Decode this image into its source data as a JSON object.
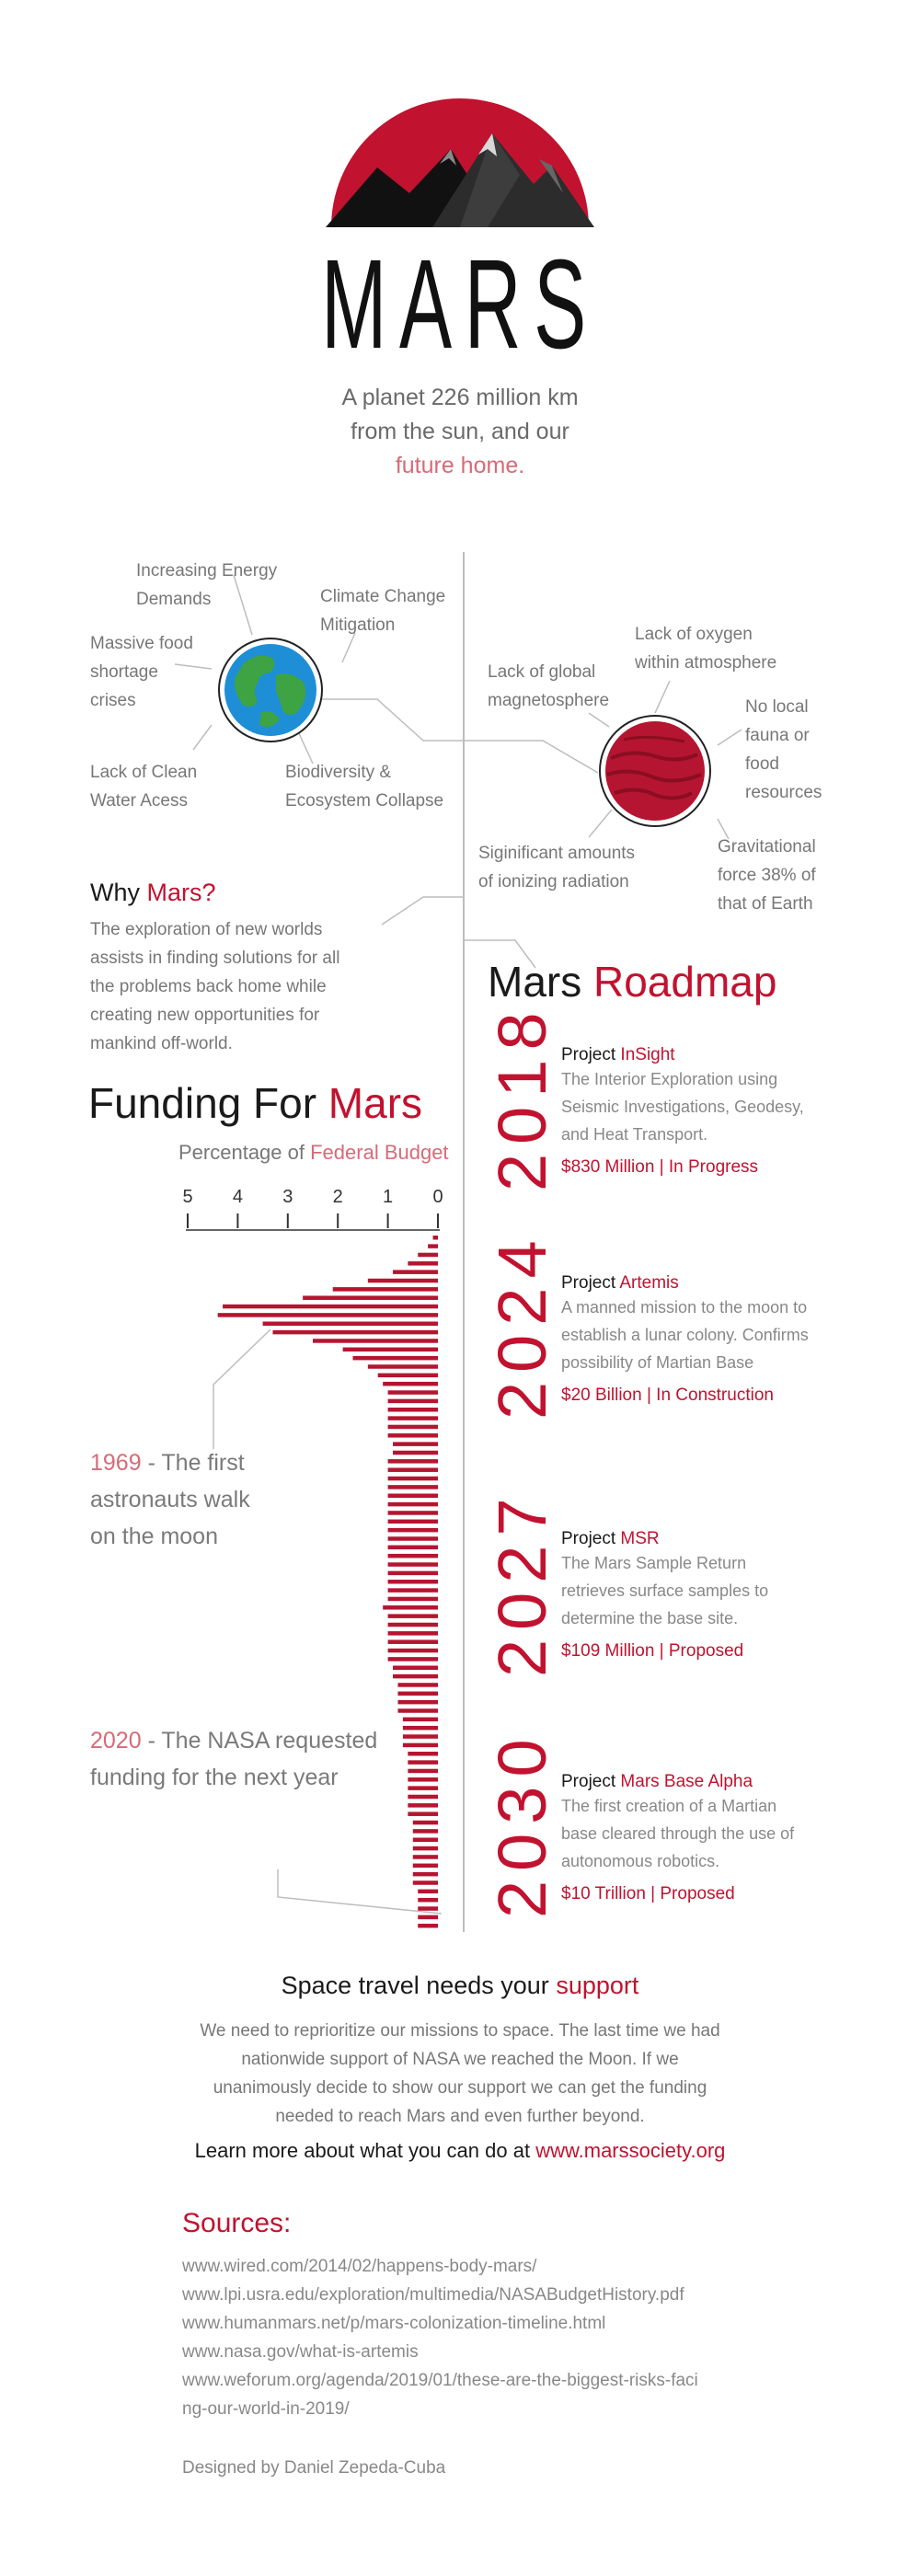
{
  "header": {
    "title": "MARS",
    "subtitle_line1": "A planet 226 million km",
    "subtitle_line2": "from the sun, and our",
    "subtitle_line3": "future home."
  },
  "earth_problems": {
    "energy": [
      "Increasing Energy",
      "Demands"
    ],
    "climate": [
      "Climate Change",
      "Mitigation"
    ],
    "food": [
      "Massive food",
      "shortage",
      "crises"
    ],
    "water": [
      "Lack of Clean",
      "Water Acess"
    ],
    "bio": [
      "Biodiversity &",
      "Ecosystem Collapse"
    ]
  },
  "mars_challenges": {
    "oxygen": [
      "Lack of oxygen",
      "within atmosphere"
    ],
    "magneto": [
      "Lack of global",
      "magnetosphere"
    ],
    "fauna": [
      "No local",
      "fauna or",
      "food",
      "resources"
    ],
    "radiation": [
      "Siginificant amounts",
      "of ionizing radiation"
    ],
    "gravity": [
      "Gravitational",
      "force 38% of",
      "that of Earth"
    ]
  },
  "why": {
    "prefix": "Why ",
    "highlight": "Mars?",
    "body": [
      "The exploration of new worlds",
      "assists in finding solutions for all",
      "the problems back home while",
      "creating new opportunities for",
      "mankind off-world."
    ]
  },
  "funding": {
    "title_prefix": "Funding For ",
    "title_highlight": "Mars",
    "subtitle_prefix": "Percentage of ",
    "subtitle_highlight": "Federal Budget",
    "note1969_year": "1969",
    "note1969_text": [
      " - The first",
      "astronauts walk",
      "on the moon"
    ],
    "note2020_year": "2020",
    "note2020_text": [
      " - The NASA requested",
      "funding for the next year"
    ]
  },
  "chart_data": {
    "type": "bar",
    "orientation": "horizontal",
    "subtitle": "Percentage of Federal Budget",
    "xlim": [
      0,
      5
    ],
    "xticks": [
      "5",
      "4",
      "3",
      "2",
      "1",
      "0"
    ],
    "values": [
      0.1,
      0.2,
      0.4,
      0.6,
      0.9,
      1.4,
      2.1,
      2.7,
      4.3,
      4.4,
      3.5,
      3.3,
      2.5,
      1.9,
      1.7,
      1.4,
      1.2,
      1.1,
      1.0,
      1.0,
      1.0,
      1.0,
      1.0,
      1.0,
      0.9,
      0.9,
      1.0,
      1.0,
      1.0,
      1.0,
      1.0,
      1.0,
      1.0,
      1.0,
      1.0,
      1.0,
      1.0,
      1.0,
      1.0,
      1.0,
      1.0,
      1.0,
      1.0,
      1.1,
      1.0,
      1.0,
      1.0,
      1.0,
      1.0,
      1.0,
      0.9,
      0.9,
      0.8,
      0.8,
      0.8,
      0.8,
      0.7,
      0.7,
      0.7,
      0.7,
      0.6,
      0.6,
      0.6,
      0.6,
      0.6,
      0.6,
      0.6,
      0.6,
      0.5,
      0.5,
      0.5,
      0.5,
      0.5,
      0.5,
      0.5,
      0.5,
      0.4,
      0.4,
      0.4,
      0.4,
      0.4
    ]
  },
  "roadmap": {
    "title_prefix": "Mars ",
    "title_highlight": "Roadmap",
    "projects": [
      {
        "year": "2018",
        "label": "Project ",
        "name": "InSight",
        "desc": [
          "The Interior Exploration using",
          "Seismic Investigations, Geodesy,",
          "and Heat Transport."
        ],
        "cost": "$830 Million | In Progress"
      },
      {
        "year": "2024",
        "label": "Project ",
        "name": "Artemis",
        "desc": [
          "A manned mission to the moon to",
          "establish a lunar colony. Confirms",
          "possibility of Martian Base"
        ],
        "cost": "$20 Billion | In Construction"
      },
      {
        "year": "2027",
        "label": "Project ",
        "name": "MSR",
        "desc": [
          "The Mars Sample Return",
          "retrieves surface samples to",
          "determine the base site."
        ],
        "cost": "$109 Million | Proposed"
      },
      {
        "year": "2030",
        "label": "Project ",
        "name": "Mars Base Alpha",
        "desc": [
          "The first creation of a Martian",
          "base cleared through the use of",
          "autonomous robotics."
        ],
        "cost": "$10 Trillion | Proposed"
      }
    ]
  },
  "support": {
    "title_prefix": "Space travel needs your ",
    "title_highlight": "support",
    "body": [
      "We need to reprioritize our missions to space. The last time we had",
      "nationwide support of NASA we reached the Moon. If we",
      "unanimously decide to show our support we can get the funding",
      "needed to reach Mars and even further beyond."
    ],
    "cta_prefix": "Learn more about what you can do at ",
    "cta_link": "www.marssociety.org"
  },
  "sources": {
    "heading": "Sources:",
    "items": [
      "www.wired.com/2014/02/happens-body-mars/",
      "www.lpi.usra.edu/exploration/multimedia/NASABudgetHistory.pdf",
      "www.humanmars.net/p/mars-colonization-timeline.html",
      "www.nasa.gov/what-is-artemis",
      "www.weforum.org/agenda/2019/01/these-are-the-biggest-risks-faci",
      "ng-our-world-in-2019/"
    ]
  },
  "credit": "Designed by Daniel Zepeda-Cuba",
  "colors": {
    "accent": "#c1122f",
    "accent_light": "#d86a78",
    "text": "#777777",
    "line": "#bdbdbd"
  }
}
